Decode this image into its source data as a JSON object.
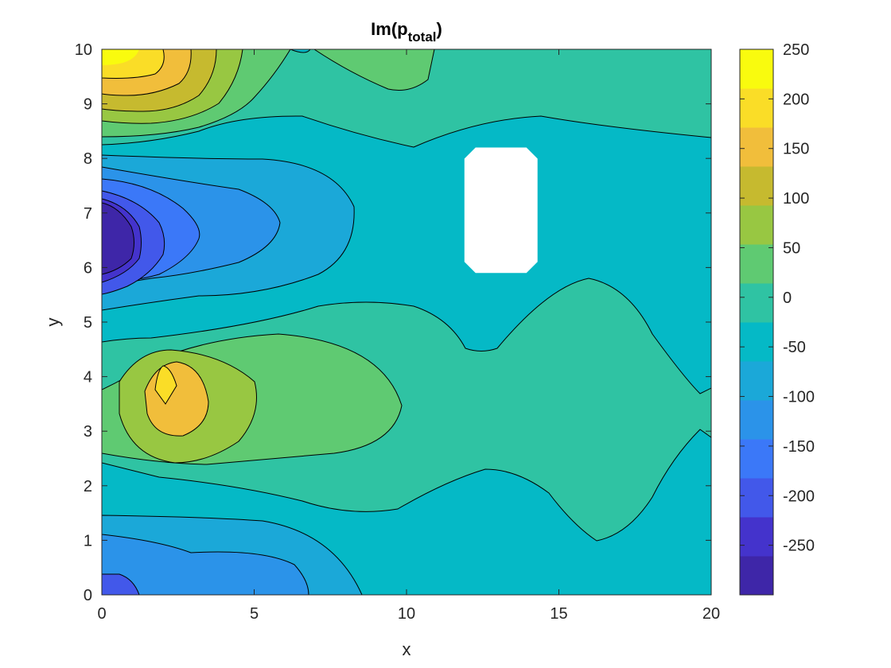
{
  "chart_data": {
    "type": "contour",
    "title": "Im(p",
    "title_subscript": "total",
    "title_close": ")",
    "xlabel": "x",
    "ylabel": "y",
    "xlim": [
      0,
      20
    ],
    "ylim": [
      0,
      10
    ],
    "x_ticks": [
      "0",
      "5",
      "10",
      "15",
      "20"
    ],
    "y_ticks": [
      "0",
      "1",
      "2",
      "3",
      "4",
      "5",
      "6",
      "7",
      "8",
      "9",
      "10"
    ],
    "colorbar": {
      "range": [
        -300,
        250
      ],
      "ticks": [
        "-250",
        "-200",
        "-150",
        "-100",
        "-50",
        "0",
        "50",
        "100",
        "150",
        "200",
        "250"
      ],
      "colormap": "parula",
      "colors": [
        "#3e26a8",
        "#4433cc",
        "#4258ea",
        "#3b78f8",
        "#2b93e9",
        "#1ba8d8",
        "#05b9c6",
        "#2fc3a3",
        "#5fca72",
        "#98c742",
        "#c6ba2f",
        "#f1be3b",
        "#fadd27",
        "#f9fb0e"
      ]
    },
    "obstacle": {
      "shape": "rectangle",
      "x_range": [
        11.9,
        14.3
      ],
      "y_range": [
        5.9,
        8.2
      ]
    },
    "features": [
      {
        "kind": "minimum",
        "x": 0.5,
        "y": 6.4,
        "approx_value": -290
      },
      {
        "kind": "maximum",
        "x": 1.5,
        "y": 10.0,
        "approx_value": 250
      },
      {
        "kind": "maximum",
        "x": 2.1,
        "y": 3.9,
        "approx_value": 180
      },
      {
        "kind": "minimum",
        "x": 0.5,
        "y": 0.1,
        "approx_value": -190
      }
    ]
  }
}
